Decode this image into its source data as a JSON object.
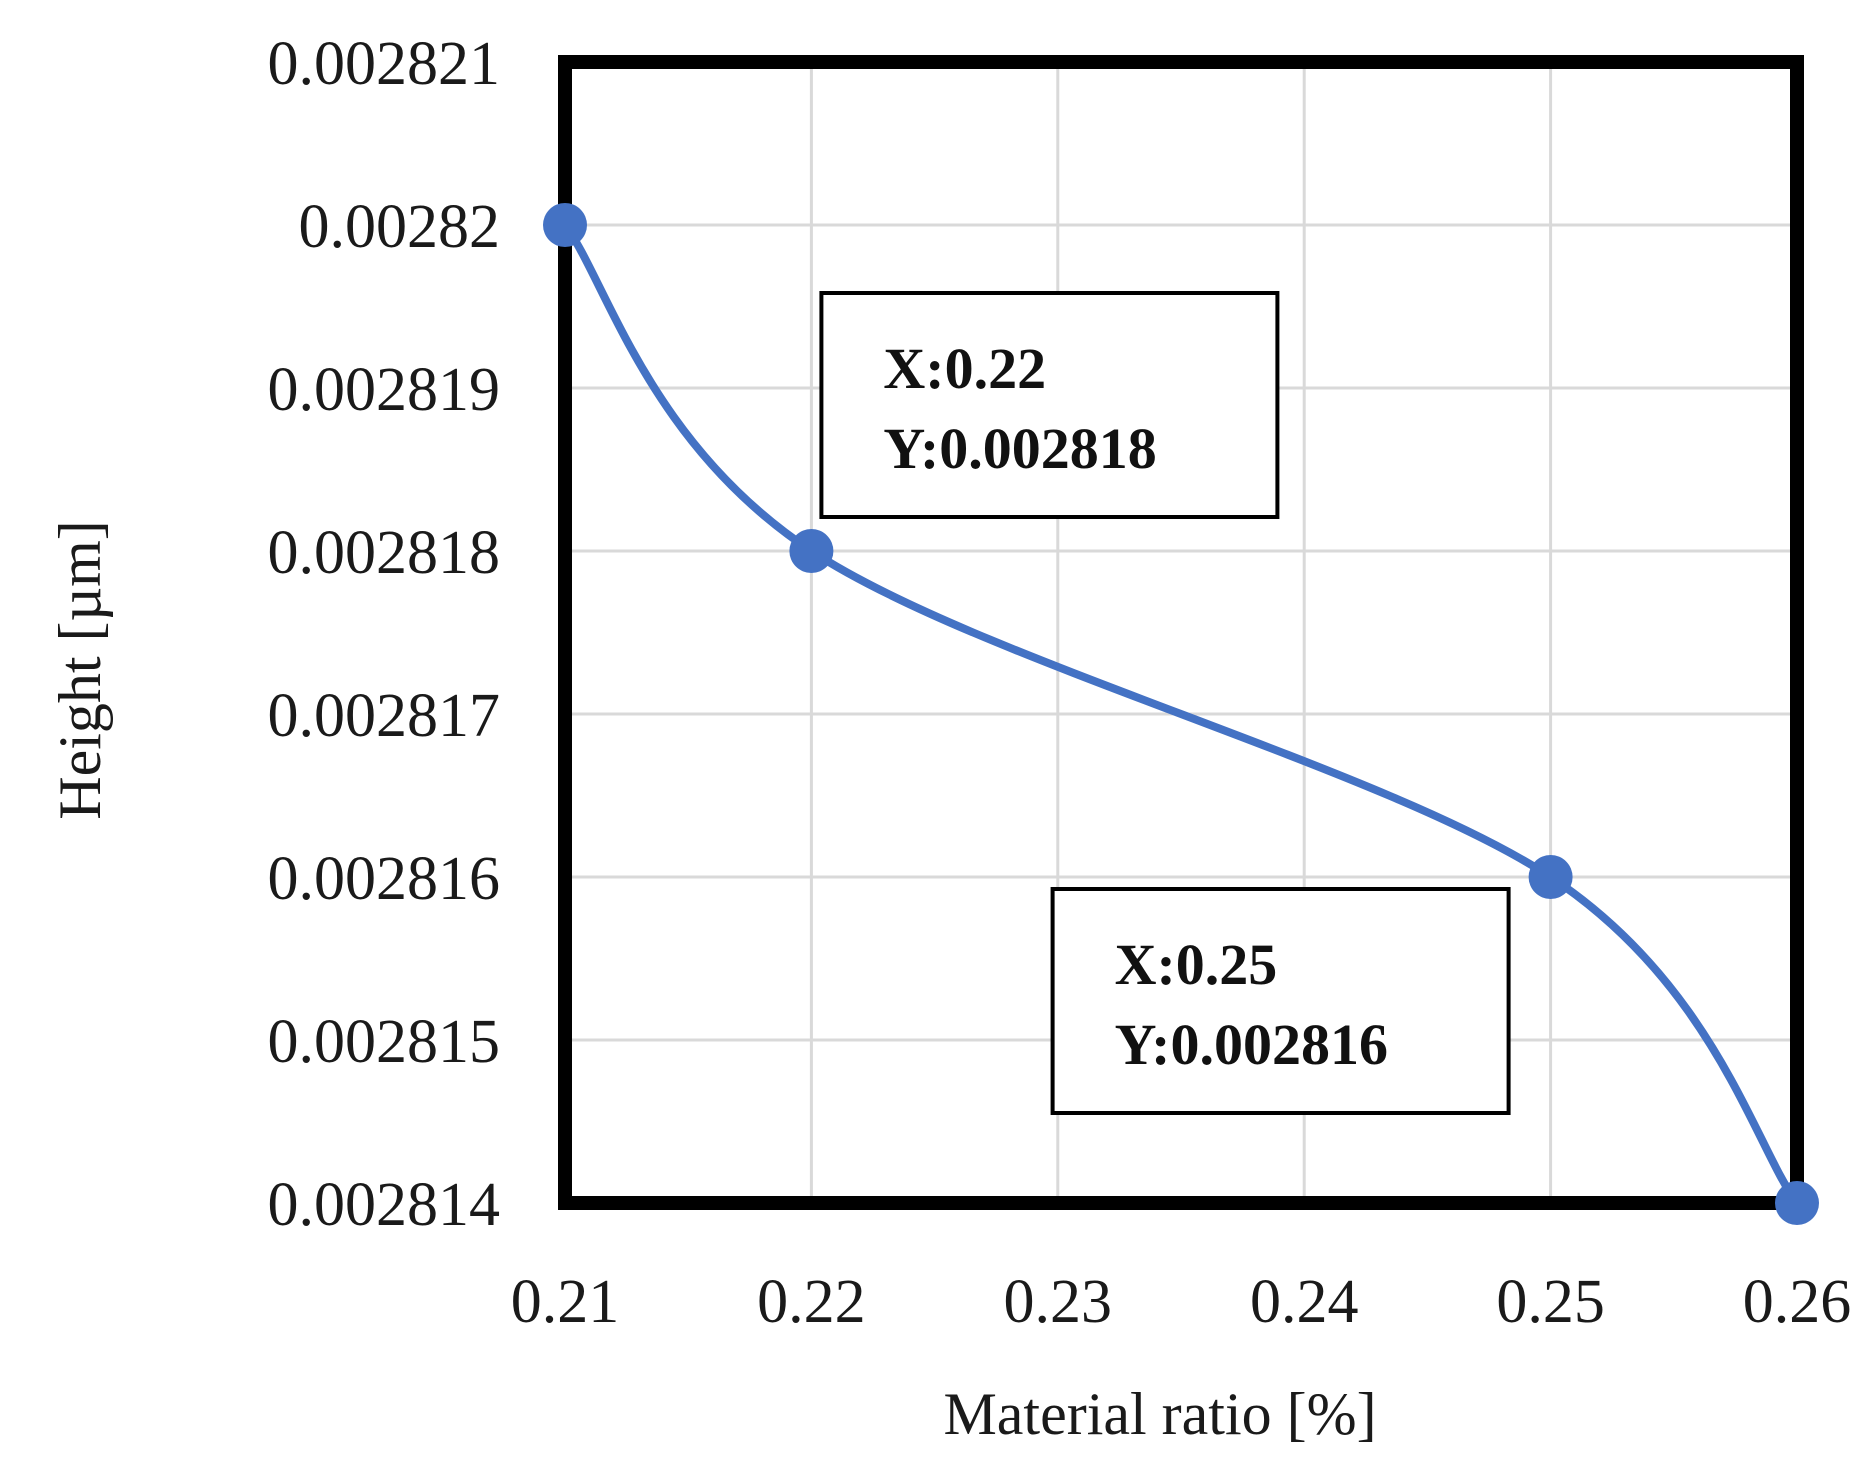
{
  "chart_data": {
    "type": "line",
    "xlabel": "Material ratio [%]",
    "ylabel": "Height  [µm]",
    "xlim": [
      0.21,
      0.26
    ],
    "ylim": [
      0.002814,
      0.002821
    ],
    "x_ticks": [
      "0.21",
      "0.22",
      "0.23",
      "0.24",
      "0.25",
      "0.26"
    ],
    "y_ticks": [
      "0.002814",
      "0.002815",
      "0.002816",
      "0.002817",
      "0.002818",
      "0.002819",
      "0.00282",
      "0.002821"
    ],
    "grid": true,
    "series": [
      {
        "color": "#4472C4",
        "smooth": true,
        "x": [
          0.21,
          0.22,
          0.25,
          0.26
        ],
        "y": [
          0.00282,
          0.002818,
          0.002816,
          0.002814
        ]
      }
    ],
    "annotations": [
      {
        "point": 1,
        "line1": "X:0.22",
        "line2": "Y:0.002818"
      },
      {
        "point": 2,
        "line1": "X:0.25",
        "line2": "Y:0.002816"
      }
    ]
  }
}
